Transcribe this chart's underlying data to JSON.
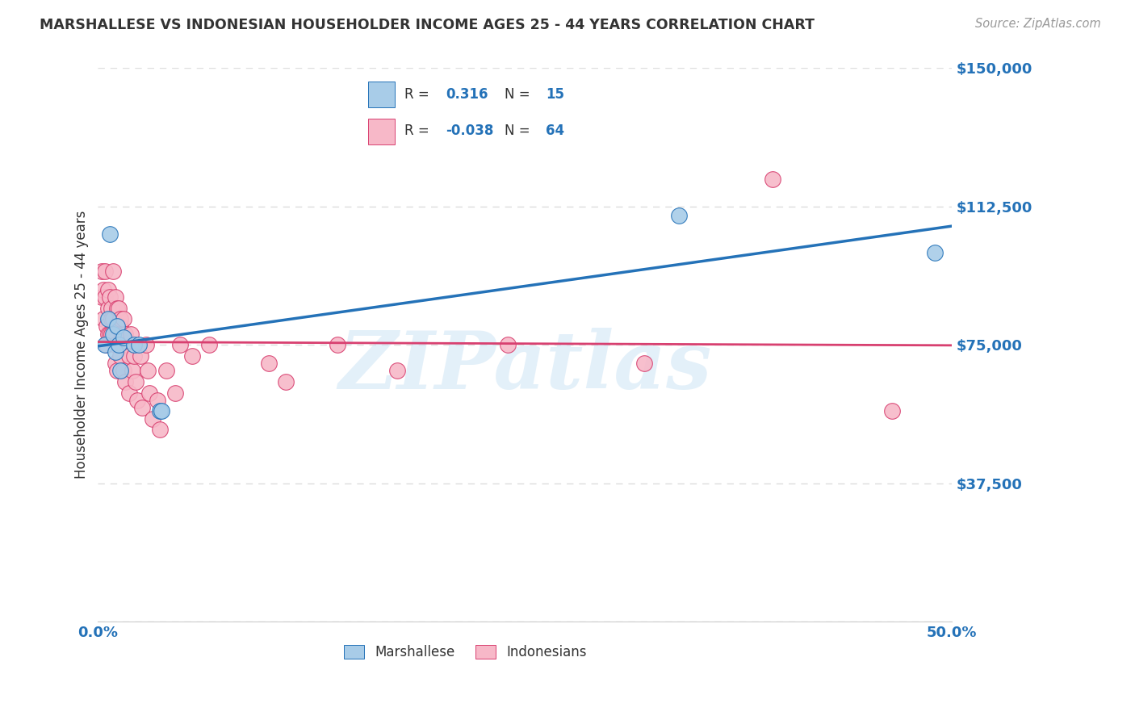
{
  "title": "MARSHALLESE VS INDONESIAN HOUSEHOLDER INCOME AGES 25 - 44 YEARS CORRELATION CHART",
  "source": "Source: ZipAtlas.com",
  "ylabel": "Householder Income Ages 25 - 44 years",
  "xlim": [
    0.0,
    0.5
  ],
  "ylim": [
    0,
    150000
  ],
  "yticks": [
    0,
    37500,
    75000,
    112500,
    150000
  ],
  "ytick_labels": [
    "",
    "$37,500",
    "$75,000",
    "$112,500",
    "$150,000"
  ],
  "blue_color": "#a8cce8",
  "pink_color": "#f7b8c8",
  "blue_line_color": "#2472b8",
  "pink_line_color": "#d84070",
  "watermark": "ZIPatlas",
  "background_color": "#ffffff",
  "grid_color": "#dddddd",
  "marshallese_x": [
    0.004,
    0.006,
    0.007,
    0.009,
    0.01,
    0.011,
    0.012,
    0.013,
    0.015,
    0.021,
    0.024,
    0.036,
    0.037,
    0.34,
    0.49
  ],
  "marshallese_y": [
    75000,
    82000,
    105000,
    78000,
    73000,
    80000,
    75000,
    68000,
    77000,
    75000,
    75000,
    57000,
    57000,
    110000,
    100000
  ],
  "indonesian_x": [
    0.002,
    0.002,
    0.003,
    0.003,
    0.004,
    0.004,
    0.005,
    0.005,
    0.006,
    0.006,
    0.006,
    0.007,
    0.007,
    0.008,
    0.008,
    0.008,
    0.009,
    0.009,
    0.01,
    0.01,
    0.01,
    0.011,
    0.011,
    0.012,
    0.012,
    0.012,
    0.013,
    0.013,
    0.013,
    0.014,
    0.014,
    0.015,
    0.015,
    0.016,
    0.016,
    0.017,
    0.018,
    0.018,
    0.019,
    0.02,
    0.021,
    0.022,
    0.023,
    0.025,
    0.026,
    0.028,
    0.029,
    0.03,
    0.032,
    0.035,
    0.036,
    0.04,
    0.045,
    0.048,
    0.055,
    0.065,
    0.1,
    0.11,
    0.14,
    0.175,
    0.24,
    0.32,
    0.395,
    0.465
  ],
  "indonesian_y": [
    88000,
    95000,
    82000,
    90000,
    88000,
    95000,
    75000,
    80000,
    90000,
    85000,
    78000,
    88000,
    78000,
    85000,
    82000,
    78000,
    82000,
    95000,
    75000,
    88000,
    70000,
    85000,
    68000,
    80000,
    75000,
    85000,
    80000,
    72000,
    82000,
    78000,
    75000,
    82000,
    68000,
    78000,
    65000,
    75000,
    72000,
    62000,
    78000,
    68000,
    72000,
    65000,
    60000,
    72000,
    58000,
    75000,
    68000,
    62000,
    55000,
    60000,
    52000,
    68000,
    62000,
    75000,
    72000,
    75000,
    70000,
    65000,
    75000,
    68000,
    75000,
    70000,
    120000,
    57000
  ]
}
